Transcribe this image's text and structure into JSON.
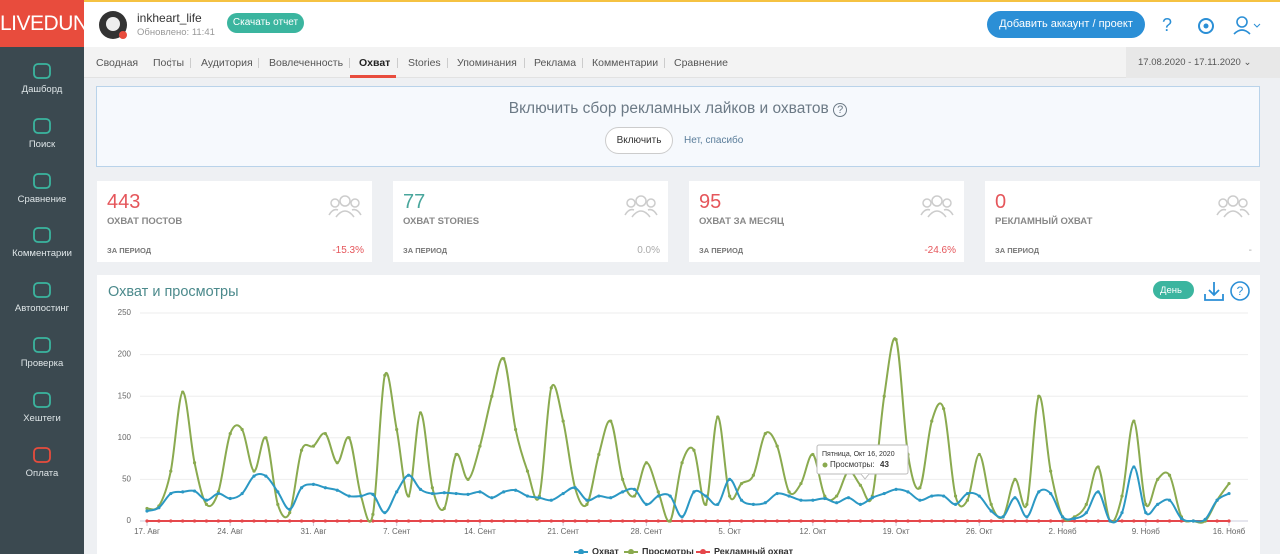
{
  "sidebar": {
    "logo": "LIVEDUNE",
    "items": [
      "Дашборд",
      "Поиск",
      "Сравнение",
      "Комментарии",
      "Автопостинг",
      "Проверка",
      "Хештеги",
      "Оплата"
    ]
  },
  "header": {
    "account": "inkheart_life",
    "updated": "Обновлено: 11:41",
    "download": "Скачать отчет",
    "add": "Добавить аккаунт / проект"
  },
  "tabs": [
    "Сводная",
    "Посты",
    "Аудитория",
    "Вовлеченность",
    "Охват",
    "Stories",
    "Упоминания",
    "Реклама",
    "Комментарии",
    "Сравнение"
  ],
  "date_range": "17.08.2020 - 17.11.2020",
  "banner": {
    "title": "Включить сбор рекламных лайков и охватов",
    "enable": "Включить",
    "decline": "Нет, спасибо"
  },
  "cards": [
    {
      "value": 443,
      "label": "ОХВАТ ПОСТОВ",
      "period": "ЗА ПЕРИОД",
      "change": "-15.3%"
    },
    {
      "value": 77,
      "label": "ОХВАТ STORIES",
      "period": "ЗА ПЕРИОД",
      "change": "0.0%"
    },
    {
      "value": 95,
      "label": "ОХВАТ ЗА МЕСЯЦ",
      "period": "ЗА ПЕРИОД",
      "change": "-24.6%"
    },
    {
      "value": 0,
      "label": "РЕКЛАМНЫЙ ОХВАТ",
      "period": "ЗА ПЕРИОД",
      "change": "-"
    }
  ],
  "chart_data": {
    "type": "line",
    "title": "Охват и просмотры",
    "period_button": "День",
    "categories": [
      "17. Авг",
      null,
      null,
      null,
      null,
      null,
      null,
      "24. Авг",
      null,
      null,
      null,
      null,
      null,
      null,
      "31. Авг",
      null,
      null,
      null,
      null,
      null,
      null,
      "7. Сент",
      null,
      null,
      null,
      null,
      null,
      null,
      "14. Сент",
      null,
      null,
      null,
      null,
      null,
      null,
      "21. Сент",
      null,
      null,
      null,
      null,
      null,
      null,
      "28. Сент",
      null,
      null,
      null,
      null,
      null,
      null,
      "5. Окт",
      null,
      null,
      null,
      null,
      null,
      null,
      "12. Окт",
      null,
      null,
      null,
      null,
      null,
      null,
      "19. Окт",
      null,
      null,
      null,
      null,
      null,
      null,
      "26. Окт",
      null,
      null,
      null,
      null,
      null,
      null,
      "2. Нояб",
      null,
      null,
      null,
      null,
      null,
      null,
      "9. Нояб",
      null,
      null,
      null,
      null,
      null,
      null,
      "16. Нояб"
    ],
    "series": [
      {
        "name": "Рекламный охват",
        "color": "#e5474b",
        "values": [
          0,
          0,
          0,
          0,
          0,
          0,
          0,
          0,
          0,
          0,
          0,
          0,
          0,
          0,
          0,
          0,
          0,
          0,
          0,
          0,
          0,
          0,
          0,
          0,
          0,
          0,
          0,
          0,
          0,
          0,
          0,
          0,
          0,
          0,
          0,
          0,
          0,
          0,
          0,
          0,
          0,
          0,
          0,
          0,
          0,
          0,
          0,
          0,
          0,
          0,
          0,
          0,
          0,
          0,
          0,
          0,
          0,
          0,
          0,
          0,
          0,
          0,
          0,
          0,
          0,
          0,
          0,
          0,
          0,
          0,
          0,
          0,
          0,
          0,
          0,
          0,
          0,
          0,
          0,
          0,
          0,
          0,
          0,
          0,
          0,
          0,
          0,
          0,
          0,
          0,
          0,
          0
        ]
      },
      {
        "name": "Просмотры",
        "color": "#8aaa4f",
        "values": [
          15,
          18,
          60,
          155,
          70,
          20,
          35,
          105,
          110,
          60,
          100,
          20,
          10,
          85,
          90,
          105,
          70,
          100,
          30,
          8,
          175,
          110,
          30,
          130,
          40,
          15,
          80,
          50,
          90,
          150,
          195,
          110,
          60,
          30,
          160,
          120,
          40,
          20,
          80,
          120,
          50,
          30,
          70,
          35,
          0,
          70,
          85,
          20,
          125,
          30,
          45,
          55,
          105,
          90,
          35,
          45,
          80,
          30,
          30,
          60,
          43,
          30,
          150,
          218,
          80,
          40,
          120,
          135,
          30,
          25,
          80,
          20,
          5,
          50,
          20,
          150,
          60,
          5,
          5,
          20,
          65,
          0,
          30,
          120,
          20,
          50,
          55,
          5,
          0,
          0,
          25,
          45
        ]
      },
      {
        "name": "Охват",
        "color": "#2b98c4",
        "values": [
          12,
          16,
          33,
          35,
          36,
          25,
          33,
          27,
          33,
          54,
          54,
          35,
          14,
          40,
          44,
          40,
          37,
          30,
          30,
          32,
          10,
          35,
          55,
          38,
          33,
          34,
          33,
          32,
          35,
          28,
          35,
          37,
          30,
          28,
          25,
          33,
          40,
          25,
          30,
          28,
          35,
          38,
          20,
          30,
          30,
          5,
          35,
          30,
          20,
          50,
          25,
          20,
          22,
          33,
          30,
          25,
          25,
          27,
          22,
          28,
          20,
          28,
          33,
          38,
          35,
          25,
          30,
          30,
          20,
          33,
          30,
          12,
          5,
          28,
          5,
          35,
          33,
          5,
          3,
          10,
          35,
          0,
          10,
          65,
          10,
          20,
          25,
          3,
          0,
          2,
          25,
          33
        ]
      }
    ],
    "ylim": [
      0,
      250
    ],
    "yticks": [
      0,
      50,
      100,
      150,
      200,
      250
    ],
    "grid": true,
    "tooltip": {
      "title": "Пятница, Окт 16, 2020",
      "label": "Просмотры:",
      "value": 43
    }
  }
}
